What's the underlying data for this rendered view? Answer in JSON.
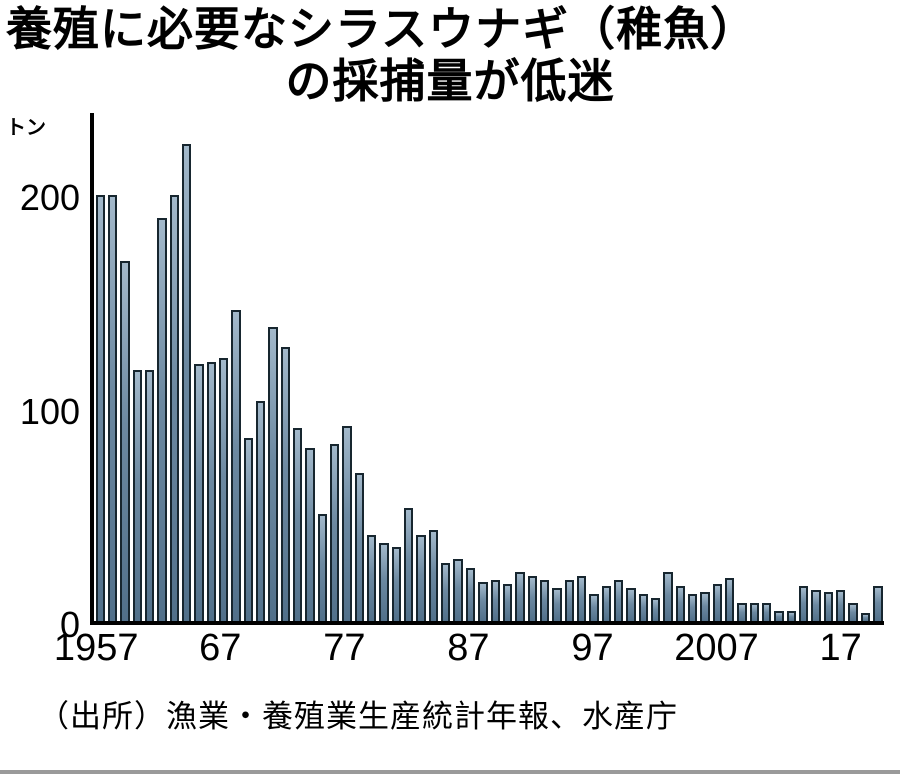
{
  "title_line1": "養殖に必要なシラスウナギ（稚魚）",
  "title_line2": "の採捕量が低迷",
  "unit_label": "トン",
  "source": "（出所）漁業・養殖業生産統計年報、水産庁",
  "chart_data": {
    "type": "bar",
    "title": "養殖に必要なシラスウナギ（稚魚）の採捕量が低迷",
    "xlabel": "",
    "ylabel": "トン",
    "ylim": [
      0,
      240
    ],
    "y_ticks": [
      0,
      100,
      200
    ],
    "grid": false,
    "legend": false,
    "bar_fill_color": "#6c89a1",
    "bar_border_color": "#17262f",
    "categories": [
      1957,
      1958,
      1959,
      1960,
      1961,
      1962,
      1963,
      1964,
      1965,
      1966,
      1967,
      1968,
      1969,
      1970,
      1971,
      1972,
      1973,
      1974,
      1975,
      1976,
      1977,
      1978,
      1979,
      1980,
      1981,
      1982,
      1983,
      1984,
      1985,
      1986,
      1987,
      1988,
      1989,
      1990,
      1991,
      1992,
      1993,
      1994,
      1995,
      1996,
      1997,
      1998,
      1999,
      2000,
      2001,
      2002,
      2003,
      2004,
      2005,
      2006,
      2007,
      2008,
      2009,
      2010,
      2011,
      2012,
      2013,
      2014,
      2015,
      2016,
      2017,
      2018,
      2019,
      2020
    ],
    "values": [
      207,
      207,
      175,
      122,
      122,
      196,
      207,
      232,
      125,
      126,
      128,
      151,
      89,
      107,
      143,
      133,
      94,
      84,
      52,
      86,
      95,
      72,
      42,
      38,
      36,
      55,
      42,
      44,
      28,
      30,
      26,
      19,
      20,
      18,
      24,
      22,
      20,
      16,
      20,
      22,
      13,
      17,
      20,
      16,
      13,
      11,
      24,
      17,
      13,
      14,
      18,
      21,
      9,
      9,
      9,
      5,
      5,
      17,
      15,
      14,
      15,
      9,
      4,
      17
    ],
    "x_ticks": [
      {
        "index": 0,
        "label": "1957"
      },
      {
        "index": 10,
        "label": "67"
      },
      {
        "index": 20,
        "label": "77"
      },
      {
        "index": 30,
        "label": "87"
      },
      {
        "index": 40,
        "label": "97"
      },
      {
        "index": 50,
        "label": "2007"
      },
      {
        "index": 60,
        "label": "17"
      }
    ],
    "source": "（出所）漁業・養殖業生産統計年報、水産庁"
  }
}
